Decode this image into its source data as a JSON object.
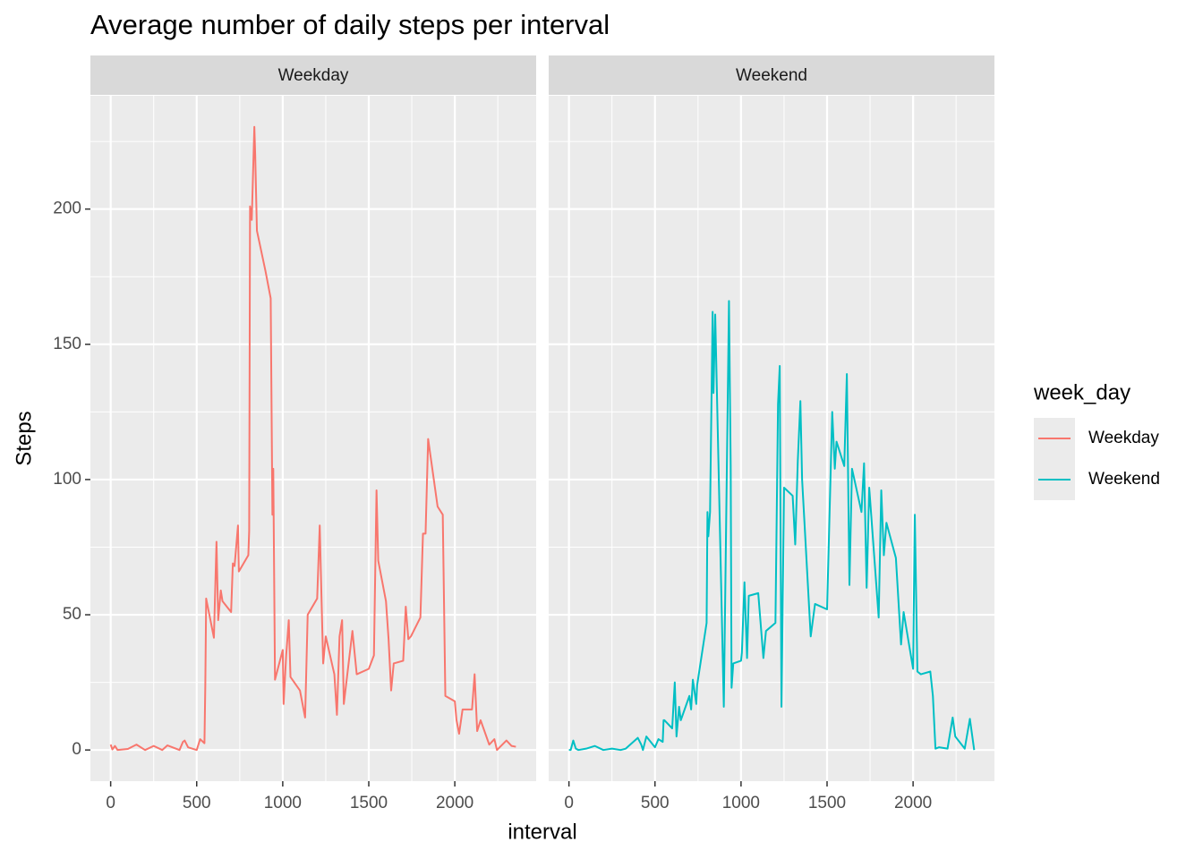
{
  "chart_data": {
    "type": "line",
    "title": "Average number of daily steps per interval",
    "xlabel": "interval",
    "ylabel": "Steps",
    "legend_title": "week_day",
    "legend": "right",
    "grid": true,
    "facet": true,
    "xlim": [
      -117.75,
      2472.75
    ],
    "ylim": [
      -11.52,
      241.9
    ],
    "xticks": [
      0,
      500,
      1000,
      1500,
      2000
    ],
    "yticks": [
      0,
      50,
      100,
      150,
      200
    ],
    "x_minor": [
      250,
      750,
      1250,
      1750,
      2250
    ],
    "y_minor": [
      25,
      75,
      125,
      175,
      225
    ],
    "x": [
      0,
      10,
      25,
      40,
      55,
      100,
      150,
      200,
      250,
      300,
      330,
      400,
      420,
      430,
      450,
      500,
      520,
      545,
      550,
      555,
      600,
      615,
      625,
      640,
      650,
      700,
      710,
      720,
      740,
      745,
      800,
      805,
      810,
      820,
      835,
      840,
      850,
      900,
      930,
      940,
      945,
      955,
      1000,
      1005,
      1020,
      1035,
      1045,
      1100,
      1130,
      1145,
      1200,
      1215,
      1225,
      1235,
      1250,
      1300,
      1315,
      1330,
      1345,
      1355,
      1405,
      1430,
      1500,
      1530,
      1545,
      1555,
      1600,
      1615,
      1630,
      1645,
      1700,
      1715,
      1730,
      1745,
      1800,
      1815,
      1830,
      1845,
      1900,
      1930,
      1945,
      2000,
      2010,
      2025,
      2045,
      2100,
      2115,
      2130,
      2150,
      2200,
      2230,
      2245,
      2300,
      2330,
      2355
    ],
    "series": [
      {
        "name": "Weekday",
        "color": "#F8766D",
        "values": [
          2,
          0.2,
          1.5,
          0,
          0.1,
          0.4,
          2,
          0,
          1.5,
          0,
          1.7,
          0,
          3,
          3.5,
          1,
          0,
          4,
          2.5,
          24,
          56,
          41.5,
          77,
          48,
          59,
          55,
          51,
          69,
          68,
          83,
          66,
          72,
          81,
          201,
          196,
          230.4,
          220,
          192,
          177,
          167,
          87,
          104,
          26,
          37,
          17,
          35,
          48,
          27,
          22,
          12,
          50,
          56,
          83,
          57,
          32,
          42,
          28,
          13,
          42,
          48,
          17,
          44,
          28,
          30,
          35,
          96,
          70,
          55,
          41,
          22,
          32,
          33,
          53,
          41,
          42,
          49,
          80,
          80,
          115,
          90,
          87,
          20,
          18,
          11,
          6,
          15,
          15,
          28,
          7,
          11,
          2,
          4,
          0,
          3.5,
          1.5,
          1.2
        ]
      },
      {
        "name": "Weekend",
        "color": "#00BFC4",
        "values": [
          0,
          0,
          3.5,
          0.5,
          0,
          0.5,
          1.5,
          0,
          0.5,
          0,
          0.5,
          4.5,
          2,
          0,
          5,
          1,
          4,
          3,
          11,
          11,
          8,
          25,
          5,
          16,
          11,
          20,
          15,
          26,
          17,
          24,
          47,
          88,
          79,
          88,
          162,
          132,
          161,
          16,
          166,
          105,
          23,
          32,
          33,
          36,
          62,
          34,
          57,
          58,
          34,
          44,
          47,
          128,
          142,
          16,
          97,
          94,
          76,
          107,
          129,
          100,
          42,
          54,
          52,
          125,
          104,
          114,
          105,
          139,
          61,
          104,
          88,
          106,
          60,
          97,
          49,
          96,
          72,
          84,
          71,
          39,
          51,
          30,
          87,
          29,
          28,
          29,
          20,
          0.5,
          1,
          0.5,
          12,
          5,
          0.5,
          11.5,
          0
        ]
      }
    ]
  }
}
